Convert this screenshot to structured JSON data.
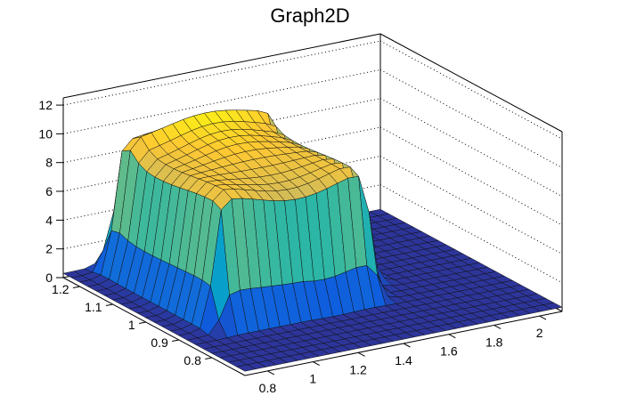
{
  "chart_data": {
    "type": "surface3d",
    "title": "Graph2D",
    "xlabel": "",
    "ylabel": "",
    "zlabel": "",
    "x_axis": {
      "range": [
        0.7,
        2.1
      ],
      "ticks": [
        0.8,
        1,
        1.2,
        1.4,
        1.6,
        1.8,
        2
      ],
      "tick_labels": [
        "0.8",
        "1",
        "1.2",
        "1.4",
        "1.6",
        "1.8",
        "2"
      ]
    },
    "y_axis": {
      "range": [
        0.7,
        1.25
      ],
      "ticks": [
        0.8,
        0.9,
        1,
        1.1,
        1.2
      ],
      "tick_labels": [
        "0.8",
        "0.9",
        "1",
        "1.1",
        "1.2"
      ]
    },
    "z_axis": {
      "range": [
        0,
        12.5
      ],
      "ticks": [
        0,
        2,
        4,
        6,
        8,
        10,
        12
      ],
      "tick_labels": [
        "0",
        "2",
        "4",
        "6",
        "8",
        "10",
        "12"
      ]
    },
    "grid": true,
    "palette": [
      "#352a87",
      "#0f5cdd",
      "#1481d6",
      "#06a4ca",
      "#2eb7a4",
      "#87bf77",
      "#d1bb59",
      "#fec832",
      "#f9fb0e"
    ],
    "surface_profile": {
      "floor_z": 0.3,
      "plateau_z": 9.2,
      "ridge_z": 10.5,
      "plateau_x": [
        0.85,
        1.55
      ],
      "plateau_y": [
        0.88,
        1.22
      ],
      "gap_x": [
        1.25,
        1.4
      ],
      "gap_y": [
        0.7,
        0.86
      ]
    }
  }
}
